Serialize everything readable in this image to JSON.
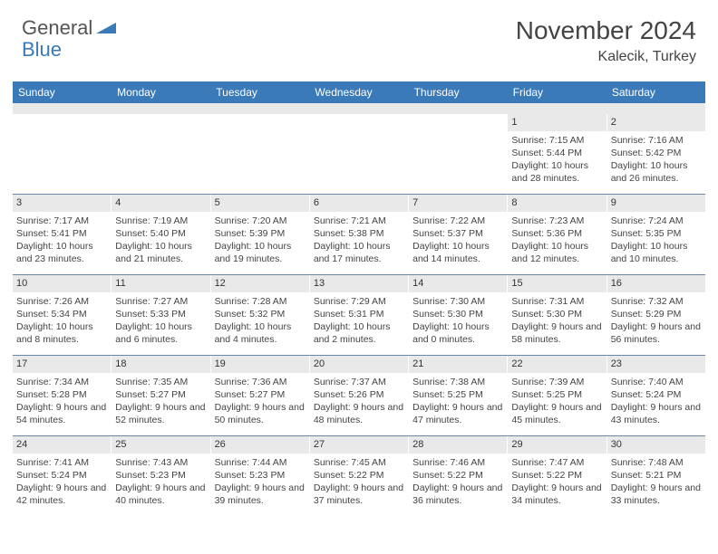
{
  "logo": {
    "text1": "General",
    "text2": "Blue"
  },
  "title": "November 2024",
  "location": "Kalecik, Turkey",
  "colors": {
    "header_bg": "#3a7ab8",
    "header_fg": "#ffffff",
    "daynum_bg": "#e9e9e9",
    "row_border": "#6a88a6",
    "text": "#444444"
  },
  "days_of_week": [
    "Sunday",
    "Monday",
    "Tuesday",
    "Wednesday",
    "Thursday",
    "Friday",
    "Saturday"
  ],
  "weeks": [
    [
      {
        "n": "",
        "sr": "",
        "ss": "",
        "dl": ""
      },
      {
        "n": "",
        "sr": "",
        "ss": "",
        "dl": ""
      },
      {
        "n": "",
        "sr": "",
        "ss": "",
        "dl": ""
      },
      {
        "n": "",
        "sr": "",
        "ss": "",
        "dl": ""
      },
      {
        "n": "",
        "sr": "",
        "ss": "",
        "dl": ""
      },
      {
        "n": "1",
        "sr": "Sunrise: 7:15 AM",
        "ss": "Sunset: 5:44 PM",
        "dl": "Daylight: 10 hours and 28 minutes."
      },
      {
        "n": "2",
        "sr": "Sunrise: 7:16 AM",
        "ss": "Sunset: 5:42 PM",
        "dl": "Daylight: 10 hours and 26 minutes."
      }
    ],
    [
      {
        "n": "3",
        "sr": "Sunrise: 7:17 AM",
        "ss": "Sunset: 5:41 PM",
        "dl": "Daylight: 10 hours and 23 minutes."
      },
      {
        "n": "4",
        "sr": "Sunrise: 7:19 AM",
        "ss": "Sunset: 5:40 PM",
        "dl": "Daylight: 10 hours and 21 minutes."
      },
      {
        "n": "5",
        "sr": "Sunrise: 7:20 AM",
        "ss": "Sunset: 5:39 PM",
        "dl": "Daylight: 10 hours and 19 minutes."
      },
      {
        "n": "6",
        "sr": "Sunrise: 7:21 AM",
        "ss": "Sunset: 5:38 PM",
        "dl": "Daylight: 10 hours and 17 minutes."
      },
      {
        "n": "7",
        "sr": "Sunrise: 7:22 AM",
        "ss": "Sunset: 5:37 PM",
        "dl": "Daylight: 10 hours and 14 minutes."
      },
      {
        "n": "8",
        "sr": "Sunrise: 7:23 AM",
        "ss": "Sunset: 5:36 PM",
        "dl": "Daylight: 10 hours and 12 minutes."
      },
      {
        "n": "9",
        "sr": "Sunrise: 7:24 AM",
        "ss": "Sunset: 5:35 PM",
        "dl": "Daylight: 10 hours and 10 minutes."
      }
    ],
    [
      {
        "n": "10",
        "sr": "Sunrise: 7:26 AM",
        "ss": "Sunset: 5:34 PM",
        "dl": "Daylight: 10 hours and 8 minutes."
      },
      {
        "n": "11",
        "sr": "Sunrise: 7:27 AM",
        "ss": "Sunset: 5:33 PM",
        "dl": "Daylight: 10 hours and 6 minutes."
      },
      {
        "n": "12",
        "sr": "Sunrise: 7:28 AM",
        "ss": "Sunset: 5:32 PM",
        "dl": "Daylight: 10 hours and 4 minutes."
      },
      {
        "n": "13",
        "sr": "Sunrise: 7:29 AM",
        "ss": "Sunset: 5:31 PM",
        "dl": "Daylight: 10 hours and 2 minutes."
      },
      {
        "n": "14",
        "sr": "Sunrise: 7:30 AM",
        "ss": "Sunset: 5:30 PM",
        "dl": "Daylight: 10 hours and 0 minutes."
      },
      {
        "n": "15",
        "sr": "Sunrise: 7:31 AM",
        "ss": "Sunset: 5:30 PM",
        "dl": "Daylight: 9 hours and 58 minutes."
      },
      {
        "n": "16",
        "sr": "Sunrise: 7:32 AM",
        "ss": "Sunset: 5:29 PM",
        "dl": "Daylight: 9 hours and 56 minutes."
      }
    ],
    [
      {
        "n": "17",
        "sr": "Sunrise: 7:34 AM",
        "ss": "Sunset: 5:28 PM",
        "dl": "Daylight: 9 hours and 54 minutes."
      },
      {
        "n": "18",
        "sr": "Sunrise: 7:35 AM",
        "ss": "Sunset: 5:27 PM",
        "dl": "Daylight: 9 hours and 52 minutes."
      },
      {
        "n": "19",
        "sr": "Sunrise: 7:36 AM",
        "ss": "Sunset: 5:27 PM",
        "dl": "Daylight: 9 hours and 50 minutes."
      },
      {
        "n": "20",
        "sr": "Sunrise: 7:37 AM",
        "ss": "Sunset: 5:26 PM",
        "dl": "Daylight: 9 hours and 48 minutes."
      },
      {
        "n": "21",
        "sr": "Sunrise: 7:38 AM",
        "ss": "Sunset: 5:25 PM",
        "dl": "Daylight: 9 hours and 47 minutes."
      },
      {
        "n": "22",
        "sr": "Sunrise: 7:39 AM",
        "ss": "Sunset: 5:25 PM",
        "dl": "Daylight: 9 hours and 45 minutes."
      },
      {
        "n": "23",
        "sr": "Sunrise: 7:40 AM",
        "ss": "Sunset: 5:24 PM",
        "dl": "Daylight: 9 hours and 43 minutes."
      }
    ],
    [
      {
        "n": "24",
        "sr": "Sunrise: 7:41 AM",
        "ss": "Sunset: 5:24 PM",
        "dl": "Daylight: 9 hours and 42 minutes."
      },
      {
        "n": "25",
        "sr": "Sunrise: 7:43 AM",
        "ss": "Sunset: 5:23 PM",
        "dl": "Daylight: 9 hours and 40 minutes."
      },
      {
        "n": "26",
        "sr": "Sunrise: 7:44 AM",
        "ss": "Sunset: 5:23 PM",
        "dl": "Daylight: 9 hours and 39 minutes."
      },
      {
        "n": "27",
        "sr": "Sunrise: 7:45 AM",
        "ss": "Sunset: 5:22 PM",
        "dl": "Daylight: 9 hours and 37 minutes."
      },
      {
        "n": "28",
        "sr": "Sunrise: 7:46 AM",
        "ss": "Sunset: 5:22 PM",
        "dl": "Daylight: 9 hours and 36 minutes."
      },
      {
        "n": "29",
        "sr": "Sunrise: 7:47 AM",
        "ss": "Sunset: 5:22 PM",
        "dl": "Daylight: 9 hours and 34 minutes."
      },
      {
        "n": "30",
        "sr": "Sunrise: 7:48 AM",
        "ss": "Sunset: 5:21 PM",
        "dl": "Daylight: 9 hours and 33 minutes."
      }
    ]
  ]
}
